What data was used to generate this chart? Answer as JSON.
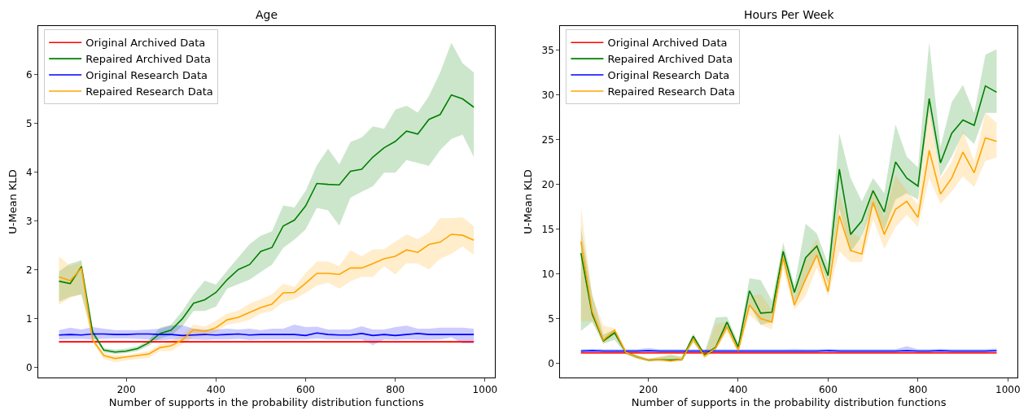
{
  "chart_data": [
    {
      "type": "line",
      "title": "Age",
      "xlabel": "Number of supports in the probability distribution functions",
      "ylabel": "U-Mean KLD",
      "x": [
        50,
        75,
        100,
        125,
        150,
        175,
        200,
        225,
        250,
        275,
        300,
        325,
        350,
        375,
        400,
        425,
        450,
        475,
        500,
        525,
        550,
        575,
        600,
        625,
        650,
        675,
        700,
        725,
        750,
        775,
        800,
        825,
        850,
        875,
        900,
        925,
        950,
        975
      ],
      "xlim": [
        3.75,
        1021.25
      ],
      "xticks": [
        200,
        400,
        600,
        800,
        1000
      ],
      "ylim": [
        -0.2,
        6.99
      ],
      "yticks": [
        0,
        1,
        2,
        3,
        4,
        5,
        6
      ],
      "legend": "top left",
      "grid": false,
      "series": [
        {
          "name": "Original Archived Data",
          "color": "#ff0000",
          "values": [
            0.53,
            0.53,
            0.53,
            0.53,
            0.53,
            0.53,
            0.53,
            0.53,
            0.53,
            0.53,
            0.53,
            0.53,
            0.53,
            0.53,
            0.53,
            0.53,
            0.53,
            0.53,
            0.53,
            0.53,
            0.53,
            0.53,
            0.53,
            0.53,
            0.53,
            0.53,
            0.53,
            0.53,
            0.53,
            0.53,
            0.53,
            0.53,
            0.53,
            0.53,
            0.53,
            0.53,
            0.53,
            0.53
          ],
          "lower": [
            0.51,
            0.51,
            0.51,
            0.51,
            0.51,
            0.51,
            0.51,
            0.51,
            0.51,
            0.51,
            0.51,
            0.51,
            0.51,
            0.51,
            0.51,
            0.51,
            0.51,
            0.51,
            0.51,
            0.51,
            0.51,
            0.51,
            0.51,
            0.51,
            0.51,
            0.51,
            0.51,
            0.51,
            0.51,
            0.51,
            0.51,
            0.51,
            0.51,
            0.51,
            0.51,
            0.51,
            0.51,
            0.51
          ],
          "upper": [
            0.55,
            0.55,
            0.55,
            0.55,
            0.55,
            0.55,
            0.55,
            0.55,
            0.55,
            0.55,
            0.55,
            0.55,
            0.55,
            0.55,
            0.55,
            0.55,
            0.55,
            0.55,
            0.55,
            0.55,
            0.55,
            0.55,
            0.55,
            0.55,
            0.55,
            0.55,
            0.55,
            0.55,
            0.55,
            0.55,
            0.55,
            0.55,
            0.55,
            0.55,
            0.55,
            0.55,
            0.55,
            0.55
          ]
        },
        {
          "name": "Repaired Archived Data",
          "color": "#008000",
          "values": [
            1.77,
            1.72,
            2.07,
            0.73,
            0.36,
            0.32,
            0.34,
            0.39,
            0.51,
            0.7,
            0.77,
            1.0,
            1.32,
            1.39,
            1.54,
            1.8,
            2.01,
            2.11,
            2.38,
            2.46,
            2.9,
            3.02,
            3.31,
            3.77,
            3.75,
            3.74,
            4.02,
            4.06,
            4.31,
            4.5,
            4.63,
            4.84,
            4.78,
            5.08,
            5.18,
            5.58,
            5.5,
            5.33
          ],
          "lower": [
            1.35,
            1.45,
            1.5,
            0.66,
            0.31,
            0.28,
            0.3,
            0.34,
            0.45,
            0.6,
            0.66,
            0.85,
            1.16,
            1.16,
            1.25,
            1.62,
            1.71,
            1.8,
            1.96,
            2.11,
            2.45,
            2.62,
            2.83,
            3.27,
            3.22,
            2.91,
            3.48,
            3.6,
            3.71,
            3.99,
            3.99,
            4.25,
            4.19,
            4.13,
            4.45,
            4.68,
            4.77,
            4.31
          ],
          "upper": [
            1.97,
            2.13,
            2.2,
            0.79,
            0.4,
            0.37,
            0.39,
            0.44,
            0.57,
            0.82,
            0.88,
            1.16,
            1.5,
            1.78,
            1.7,
            1.99,
            2.26,
            2.53,
            2.7,
            2.79,
            3.32,
            3.28,
            3.62,
            4.14,
            4.48,
            4.16,
            4.62,
            4.71,
            4.94,
            4.89,
            5.28,
            5.36,
            5.22,
            5.56,
            6.04,
            6.65,
            6.23,
            6.04
          ]
        },
        {
          "name": "Original Research Data",
          "color": "#0000ff",
          "values": [
            0.67,
            0.68,
            0.67,
            0.69,
            0.69,
            0.68,
            0.68,
            0.69,
            0.69,
            0.68,
            0.68,
            0.66,
            0.67,
            0.68,
            0.67,
            0.68,
            0.69,
            0.67,
            0.68,
            0.68,
            0.68,
            0.68,
            0.66,
            0.71,
            0.68,
            0.67,
            0.67,
            0.7,
            0.66,
            0.68,
            0.66,
            0.68,
            0.7,
            0.68,
            0.68,
            0.68,
            0.68,
            0.68
          ],
          "lower": [
            0.58,
            0.59,
            0.59,
            0.58,
            0.59,
            0.6,
            0.6,
            0.59,
            0.58,
            0.56,
            0.58,
            0.58,
            0.58,
            0.57,
            0.58,
            0.58,
            0.59,
            0.57,
            0.58,
            0.58,
            0.58,
            0.58,
            0.58,
            0.6,
            0.58,
            0.58,
            0.58,
            0.58,
            0.46,
            0.58,
            0.57,
            0.58,
            0.57,
            0.57,
            0.58,
            0.62,
            0.5,
            0.5
          ],
          "upper": [
            0.77,
            0.82,
            0.78,
            0.83,
            0.8,
            0.77,
            0.77,
            0.77,
            0.78,
            0.8,
            0.86,
            0.87,
            0.8,
            0.78,
            0.78,
            0.8,
            0.78,
            0.8,
            0.77,
            0.8,
            0.8,
            0.88,
            0.83,
            0.84,
            0.78,
            0.78,
            0.78,
            0.85,
            0.78,
            0.78,
            0.83,
            0.86,
            0.8,
            0.8,
            0.82,
            0.82,
            0.82,
            0.8
          ]
        },
        {
          "name": "Repaired Research Data",
          "color": "#ffa500",
          "values": [
            1.86,
            1.78,
            2.04,
            0.57,
            0.25,
            0.19,
            0.22,
            0.25,
            0.28,
            0.41,
            0.45,
            0.57,
            0.78,
            0.74,
            0.82,
            0.98,
            1.03,
            1.13,
            1.23,
            1.3,
            1.53,
            1.54,
            1.73,
            1.93,
            1.93,
            1.91,
            2.04,
            2.04,
            2.13,
            2.23,
            2.28,
            2.41,
            2.36,
            2.52,
            2.57,
            2.73,
            2.71,
            2.61
          ],
          "lower": [
            1.29,
            1.43,
            1.5,
            0.51,
            0.18,
            0.11,
            0.15,
            0.18,
            0.2,
            0.34,
            0.34,
            0.48,
            0.63,
            0.65,
            0.73,
            0.88,
            0.92,
            0.98,
            1.11,
            1.16,
            1.34,
            1.4,
            1.53,
            1.68,
            1.74,
            1.62,
            1.77,
            1.86,
            1.86,
            2.08,
            1.91,
            2.14,
            2.13,
            2.01,
            2.23,
            2.33,
            2.48,
            2.31
          ],
          "upper": [
            2.28,
            2.08,
            2.17,
            0.63,
            0.3,
            0.25,
            0.26,
            0.3,
            0.34,
            0.48,
            0.54,
            0.68,
            0.88,
            0.84,
            0.96,
            1.11,
            1.17,
            1.31,
            1.4,
            1.5,
            1.72,
            1.65,
            1.94,
            2.17,
            2.17,
            2.08,
            2.4,
            2.28,
            2.42,
            2.42,
            2.58,
            2.73,
            2.63,
            2.77,
            3.06,
            3.06,
            3.08,
            2.89
          ]
        }
      ]
    },
    {
      "type": "line",
      "title": "Hours Per Week",
      "xlabel": "Number of supports in the probability distribution functions",
      "ylabel": "U-Mean KLD",
      "x": [
        50,
        75,
        100,
        125,
        150,
        175,
        200,
        225,
        250,
        275,
        300,
        325,
        350,
        375,
        400,
        425,
        450,
        475,
        500,
        525,
        550,
        575,
        600,
        625,
        650,
        675,
        700,
        725,
        750,
        775,
        800,
        825,
        850,
        875,
        900,
        925,
        950,
        975
      ],
      "xlim": [
        3.75,
        1021.25
      ],
      "xticks": [
        200,
        400,
        600,
        800,
        1000
      ],
      "ylim": [
        -1.6,
        37.7
      ],
      "yticks": [
        0,
        5,
        10,
        15,
        20,
        25,
        30,
        35
      ],
      "legend": "top left",
      "grid": false,
      "series": [
        {
          "name": "Original Archived Data",
          "color": "#ff0000",
          "values": [
            1.15,
            1.15,
            1.15,
            1.15,
            1.15,
            1.15,
            1.15,
            1.15,
            1.15,
            1.15,
            1.15,
            1.15,
            1.15,
            1.15,
            1.15,
            1.15,
            1.15,
            1.15,
            1.15,
            1.15,
            1.15,
            1.15,
            1.15,
            1.15,
            1.15,
            1.15,
            1.15,
            1.15,
            1.15,
            1.15,
            1.15,
            1.15,
            1.15,
            1.15,
            1.15,
            1.15,
            1.15,
            1.15
          ],
          "lower": [
            1.05,
            1.05,
            1.05,
            1.05,
            1.05,
            1.05,
            1.05,
            1.05,
            1.05,
            1.05,
            1.05,
            1.05,
            1.05,
            1.05,
            1.05,
            1.05,
            1.05,
            1.05,
            1.05,
            1.05,
            1.05,
            1.05,
            1.05,
            1.05,
            1.05,
            1.05,
            1.05,
            1.05,
            1.05,
            1.05,
            1.05,
            1.05,
            1.05,
            1.05,
            1.05,
            1.05,
            1.05,
            1.05
          ],
          "upper": [
            1.25,
            1.25,
            1.25,
            1.25,
            1.25,
            1.25,
            1.25,
            1.25,
            1.25,
            1.25,
            1.25,
            1.25,
            1.25,
            1.25,
            1.25,
            1.25,
            1.25,
            1.25,
            1.25,
            1.25,
            1.25,
            1.25,
            1.25,
            1.25,
            1.25,
            1.25,
            1.25,
            1.25,
            1.25,
            1.25,
            1.25,
            1.25,
            1.25,
            1.25,
            1.25,
            1.25,
            1.25,
            1.25
          ]
        },
        {
          "name": "Repaired Archived Data",
          "color": "#008000",
          "values": [
            12.3,
            5.5,
            2.5,
            3.4,
            1.2,
            0.7,
            0.34,
            0.4,
            0.34,
            0.45,
            3.0,
            0.9,
            1.8,
            4.6,
            1.8,
            8.1,
            5.6,
            5.7,
            12.5,
            7.9,
            11.8,
            13.1,
            9.8,
            21.7,
            14.4,
            15.9,
            19.3,
            16.9,
            22.5,
            20.7,
            19.8,
            29.6,
            22.4,
            25.7,
            27.2,
            26.6,
            31.0,
            30.3
          ],
          "lower": [
            3.6,
            4.6,
            2.2,
            2.6,
            1.0,
            0.5,
            0.24,
            0.24,
            0.2,
            0.24,
            2.3,
            0.7,
            1.5,
            3.8,
            1.5,
            6.5,
            4.3,
            4.6,
            11.5,
            6.8,
            9.4,
            12.1,
            8.9,
            17.3,
            12.4,
            14.2,
            17.6,
            14.9,
            18.3,
            19.0,
            18.3,
            28.2,
            20.9,
            23.1,
            25.7,
            24.5,
            28.0,
            28.0
          ],
          "upper": [
            15.2,
            7.7,
            3.2,
            3.8,
            1.4,
            0.9,
            0.5,
            0.7,
            0.9,
            0.7,
            3.3,
            1.2,
            5.1,
            5.2,
            2.3,
            9.5,
            9.3,
            7.0,
            13.5,
            8.7,
            15.6,
            14.5,
            11.1,
            25.7,
            20.7,
            18.1,
            20.7,
            19.0,
            26.7,
            23.1,
            21.9,
            35.9,
            24.2,
            29.2,
            31.1,
            28.0,
            34.5,
            35.1
          ]
        },
        {
          "name": "Original Research Data",
          "color": "#0000ff",
          "values": [
            1.35,
            1.4,
            1.35,
            1.35,
            1.35,
            1.35,
            1.4,
            1.35,
            1.35,
            1.35,
            1.35,
            1.35,
            1.35,
            1.35,
            1.35,
            1.35,
            1.35,
            1.35,
            1.35,
            1.35,
            1.35,
            1.35,
            1.4,
            1.35,
            1.35,
            1.35,
            1.35,
            1.35,
            1.35,
            1.4,
            1.35,
            1.35,
            1.4,
            1.35,
            1.35,
            1.35,
            1.35,
            1.4
          ],
          "lower": [
            1.2,
            1.2,
            1.2,
            1.2,
            1.2,
            1.2,
            1.2,
            1.2,
            1.2,
            1.2,
            1.2,
            1.2,
            1.2,
            1.2,
            1.2,
            1.2,
            1.2,
            1.2,
            1.2,
            1.2,
            1.2,
            1.2,
            1.2,
            1.2,
            1.2,
            1.2,
            1.2,
            1.2,
            1.2,
            1.2,
            1.2,
            1.2,
            1.2,
            1.2,
            1.2,
            1.2,
            1.2,
            1.2
          ],
          "upper": [
            1.55,
            1.6,
            1.55,
            1.55,
            1.55,
            1.55,
            1.7,
            1.55,
            1.55,
            1.55,
            1.55,
            1.55,
            1.55,
            1.55,
            1.55,
            1.55,
            1.55,
            1.55,
            1.55,
            1.6,
            1.55,
            1.55,
            1.6,
            1.55,
            1.55,
            1.55,
            1.55,
            1.55,
            1.55,
            1.9,
            1.55,
            1.55,
            1.6,
            1.55,
            1.55,
            1.55,
            1.55,
            1.65
          ]
        },
        {
          "name": "Repaired Research Data",
          "color": "#ffa500",
          "values": [
            13.6,
            5.8,
            2.6,
            3.7,
            1.2,
            0.7,
            0.34,
            0.4,
            0.24,
            0.45,
            2.7,
            0.8,
            1.7,
            4.1,
            1.4,
            6.5,
            5.0,
            4.6,
            11.8,
            6.5,
            9.4,
            12.1,
            8.0,
            16.5,
            12.6,
            12.2,
            18.0,
            14.4,
            17.2,
            18.1,
            16.3,
            23.8,
            18.9,
            20.7,
            23.6,
            21.3,
            25.2,
            24.8
          ],
          "lower": [
            4.7,
            4.7,
            2.1,
            3.1,
            1.0,
            0.5,
            0.2,
            0.2,
            0.1,
            0.24,
            2.4,
            0.5,
            1.5,
            3.4,
            1.2,
            5.4,
            4.3,
            3.8,
            10.5,
            6.0,
            7.5,
            10.7,
            7.5,
            12.5,
            11.3,
            11.3,
            16.1,
            12.8,
            15.2,
            16.6,
            15.2,
            20.7,
            17.8,
            19.2,
            20.9,
            19.7,
            22.6,
            23.0
          ],
          "upper": [
            17.5,
            7.5,
            4.2,
            3.9,
            1.4,
            0.9,
            0.5,
            0.7,
            1.0,
            0.7,
            3.3,
            1.0,
            4.4,
            4.6,
            1.9,
            7.5,
            7.7,
            6.0,
            12.9,
            7.2,
            11.8,
            13.9,
            9.2,
            19.0,
            14.7,
            13.9,
            19.6,
            16.3,
            21.0,
            19.3,
            17.7,
            28.4,
            20.6,
            22.5,
            26.0,
            22.6,
            28.0,
            26.9
          ]
        }
      ]
    }
  ]
}
